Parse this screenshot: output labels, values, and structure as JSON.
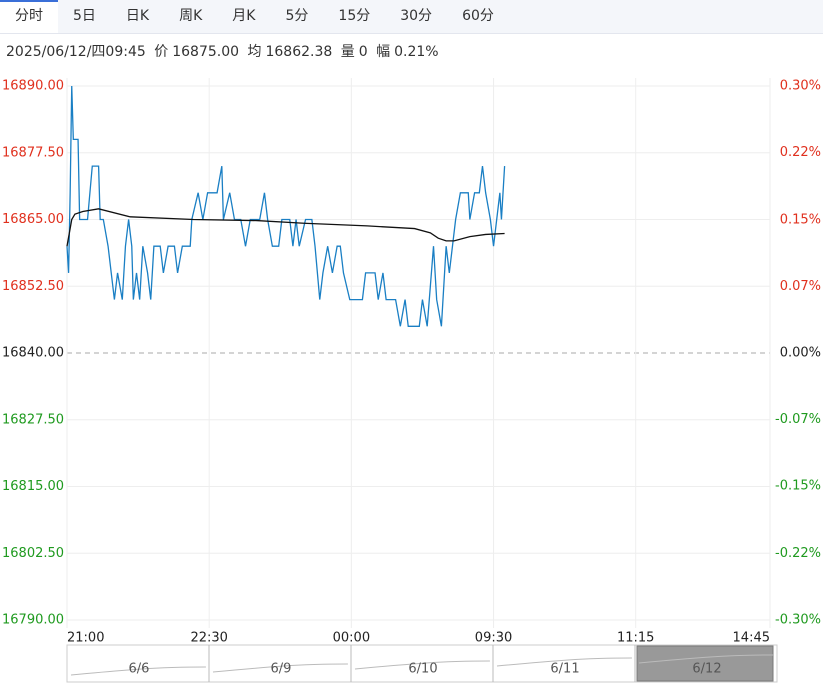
{
  "tabs": [
    "分时",
    "5日",
    "日K",
    "周K",
    "月K",
    "5分",
    "15分",
    "30分",
    "60分"
  ],
  "info": {
    "datetime": "2025/06/12/四09:45",
    "price_label": "价",
    "price": "16875.00",
    "avg_label": "均",
    "avg": "16862.38",
    "vol_label": "量",
    "vol": "0",
    "chg_label": "幅",
    "chg": "0.21%"
  },
  "chart_data": {
    "type": "line",
    "xlim": [
      0,
      445
    ],
    "xticks": [
      {
        "value": 0,
        "label": "21:00"
      },
      {
        "value": 90,
        "label": "22:30"
      },
      {
        "value": 180,
        "label": "00:00"
      },
      {
        "value": 270,
        "label": "09:30"
      },
      {
        "value": 360,
        "label": "11:15"
      },
      {
        "value": 445,
        "label": "14:45"
      }
    ],
    "ylim": [
      16790,
      16890
    ],
    "yticks": [
      {
        "value": 16890,
        "label": "16890.00"
      },
      {
        "value": 16877.5,
        "label": "16877.50"
      },
      {
        "value": 16865,
        "label": "16865.00"
      },
      {
        "value": 16852.5,
        "label": "16852.50"
      },
      {
        "value": 16840,
        "label": "16840.00"
      },
      {
        "value": 16827.5,
        "label": "16827.50"
      },
      {
        "value": 16815,
        "label": "16815.00"
      },
      {
        "value": 16802.5,
        "label": "16802.50"
      },
      {
        "value": 16790,
        "label": "16790.00"
      }
    ],
    "y2lim": [
      -0.297,
      0.297
    ],
    "y2ticks": [
      {
        "value": 0.297,
        "label": "0.30%"
      },
      {
        "value": 0.223,
        "label": "0.22%"
      },
      {
        "value": 0.148,
        "label": "0.15%"
      },
      {
        "value": 0.074,
        "label": "0.07%"
      },
      {
        "value": 0,
        "label": "0.00%"
      },
      {
        "value": -0.074,
        "label": "-0.07%"
      },
      {
        "value": -0.148,
        "label": "-0.15%"
      },
      {
        "value": -0.223,
        "label": "-0.22%"
      },
      {
        "value": -0.297,
        "label": "-0.30%"
      }
    ],
    "base": 16840,
    "up_color": "#e0301e",
    "down_color": "#1f9a1f",
    "flat_color": "#222",
    "series": [
      {
        "color": "#1a7fc4",
        "x": [
          0,
          1,
          2,
          3,
          4,
          7,
          8,
          13,
          16,
          20,
          21,
          23,
          26,
          28,
          30,
          32,
          35,
          37,
          39,
          41,
          42,
          44,
          46,
          48,
          51,
          53,
          55,
          59,
          61,
          64,
          68,
          70,
          73,
          78,
          79,
          83,
          86,
          89,
          95,
          98,
          99,
          103,
          106,
          110,
          113,
          116,
          122,
          125,
          127,
          130,
          134,
          136,
          141,
          143,
          145,
          147,
          151,
          155,
          157,
          160,
          162,
          165,
          168,
          171,
          173,
          175,
          179,
          182,
          187,
          189,
          195,
          197,
          200,
          202,
          208,
          211,
          214,
          216,
          223,
          225,
          228,
          232,
          234,
          237,
          240,
          242,
          246,
          249,
          254,
          255,
          258,
          261,
          263,
          265,
          268,
          270,
          272,
          274,
          275,
          277
        ],
        "values": [
          16860,
          16855,
          16870,
          16890,
          16880,
          16880,
          16865,
          16865,
          16875,
          16875,
          16865,
          16865,
          16860,
          16855,
          16850,
          16855,
          16850,
          16860,
          16865,
          16860,
          16850,
          16855,
          16850,
          16860,
          16855,
          16850,
          16860,
          16860,
          16855,
          16860,
          16860,
          16855,
          16860,
          16860,
          16865,
          16870,
          16865,
          16870,
          16870,
          16875,
          16865,
          16870,
          16865,
          16865,
          16860,
          16865,
          16865,
          16870,
          16865,
          16860,
          16860,
          16865,
          16865,
          16860,
          16865,
          16860,
          16865,
          16865,
          16860,
          16850,
          16855,
          16860,
          16855,
          16860,
          16860,
          16855,
          16850,
          16850,
          16850,
          16855,
          16855,
          16850,
          16855,
          16850,
          16850,
          16845,
          16850,
          16845,
          16845,
          16850,
          16845,
          16860,
          16850,
          16845,
          16860,
          16855,
          16865,
          16870,
          16870,
          16865,
          16870,
          16870,
          16875,
          16870,
          16865,
          16860,
          16865,
          16870,
          16865,
          16875
        ]
      },
      {
        "color": "#111",
        "x": [
          0,
          3,
          5,
          10,
          20,
          40,
          80,
          120,
          150,
          190,
          220,
          230,
          235,
          240,
          245,
          255,
          265,
          277
        ],
        "values": [
          16860,
          16865,
          16866,
          16866.5,
          16867,
          16865.5,
          16865,
          16864.8,
          16864.3,
          16863.8,
          16863.3,
          16862.5,
          16861.5,
          16861,
          16861,
          16861.8,
          16862.2,
          16862.38
        ]
      }
    ],
    "navigator": [
      "6/6",
      "6/9",
      "6/10",
      "6/11",
      "6/12"
    ]
  }
}
